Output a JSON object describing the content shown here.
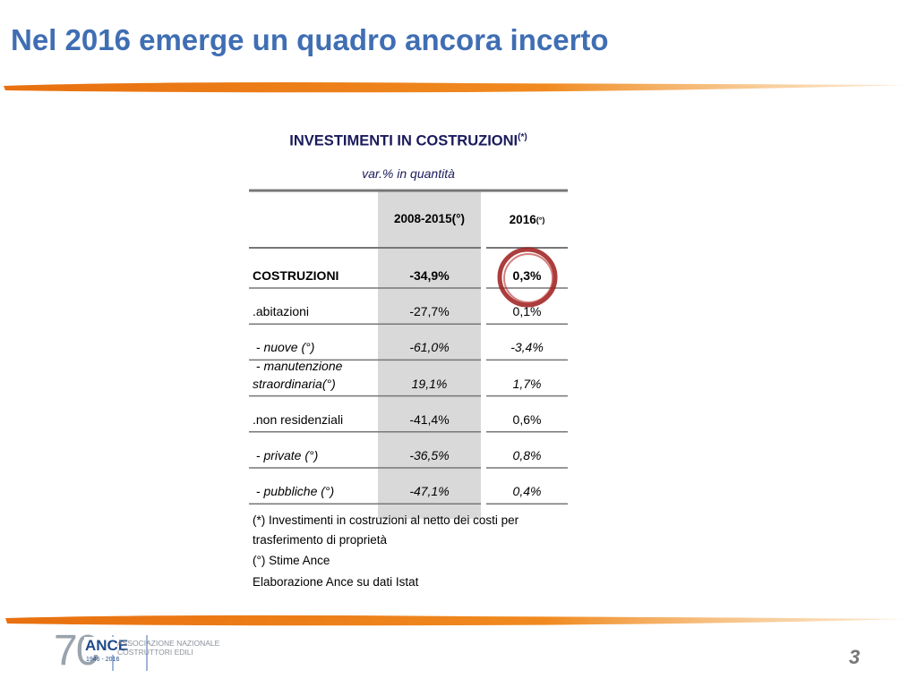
{
  "title": "Nel 2016 emerge un quadro ancora incerto",
  "table": {
    "title": "INVESTIMENTI IN COSTRUZIONI",
    "title_note": "(*)",
    "subtitle": "var.% in quantità",
    "columns": [
      "2008-2015(°)",
      "2016"
    ],
    "column_note": "(°)",
    "rows": [
      [
        "COSTRUZIONI",
        "-34,9%",
        "0,3%"
      ],
      [
        ".abitazioni",
        "-27,7%",
        "0,1%"
      ],
      [
        " - nuove (°)",
        "-61,0%",
        "-3,4%"
      ],
      [
        " - manutenzione straordinaria(°)",
        "19,1%",
        "1,7%"
      ],
      [
        ".non residenziali",
        "-41,4%",
        "0,6%"
      ],
      [
        " - private (°)",
        "-36,5%",
        "0,8%"
      ],
      [
        " - pubbliche (°)",
        "-47,1%",
        "0,4%"
      ]
    ]
  },
  "notes": [
    "(*) Investimenti in costruzioni al netto dei costi per trasferimento di proprietà",
    "(°) Stime Ance",
    "Elaborazione Ance su dati Istat"
  ],
  "logo": {
    "number": "70",
    "name": "ANCE",
    "years": "1946 - 2016",
    "org_line1": "ASSOCIAZIONE NAZIONALE",
    "org_line2": "COSTRUTTORI EDILI"
  },
  "page_number": "3"
}
